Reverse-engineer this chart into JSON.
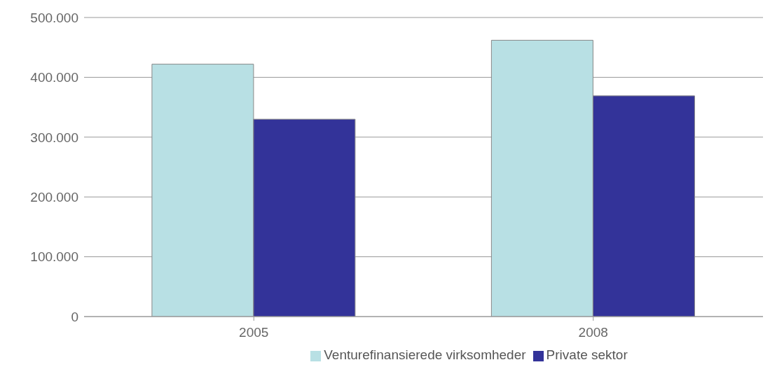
{
  "chart_data": {
    "type": "bar",
    "categories": [
      "2005",
      "2008"
    ],
    "series": [
      {
        "name": "Venturefinansierede virksomheder",
        "color": "#b8e0e4",
        "values": [
          422000,
          462000
        ]
      },
      {
        "name": "Private sektor",
        "color": "#333399",
        "values": [
          330000,
          369000
        ]
      }
    ],
    "ylim": [
      0,
      500000
    ],
    "yticks": [
      {
        "value": 0,
        "label": "0"
      },
      {
        "value": 100000,
        "label": "100.000"
      },
      {
        "value": 200000,
        "label": "200.000"
      },
      {
        "value": 300000,
        "label": "300.000"
      },
      {
        "value": 400000,
        "label": "400.000"
      },
      {
        "value": 500000,
        "label": "500.000"
      }
    ],
    "grid": "y",
    "legend": "bottom"
  }
}
